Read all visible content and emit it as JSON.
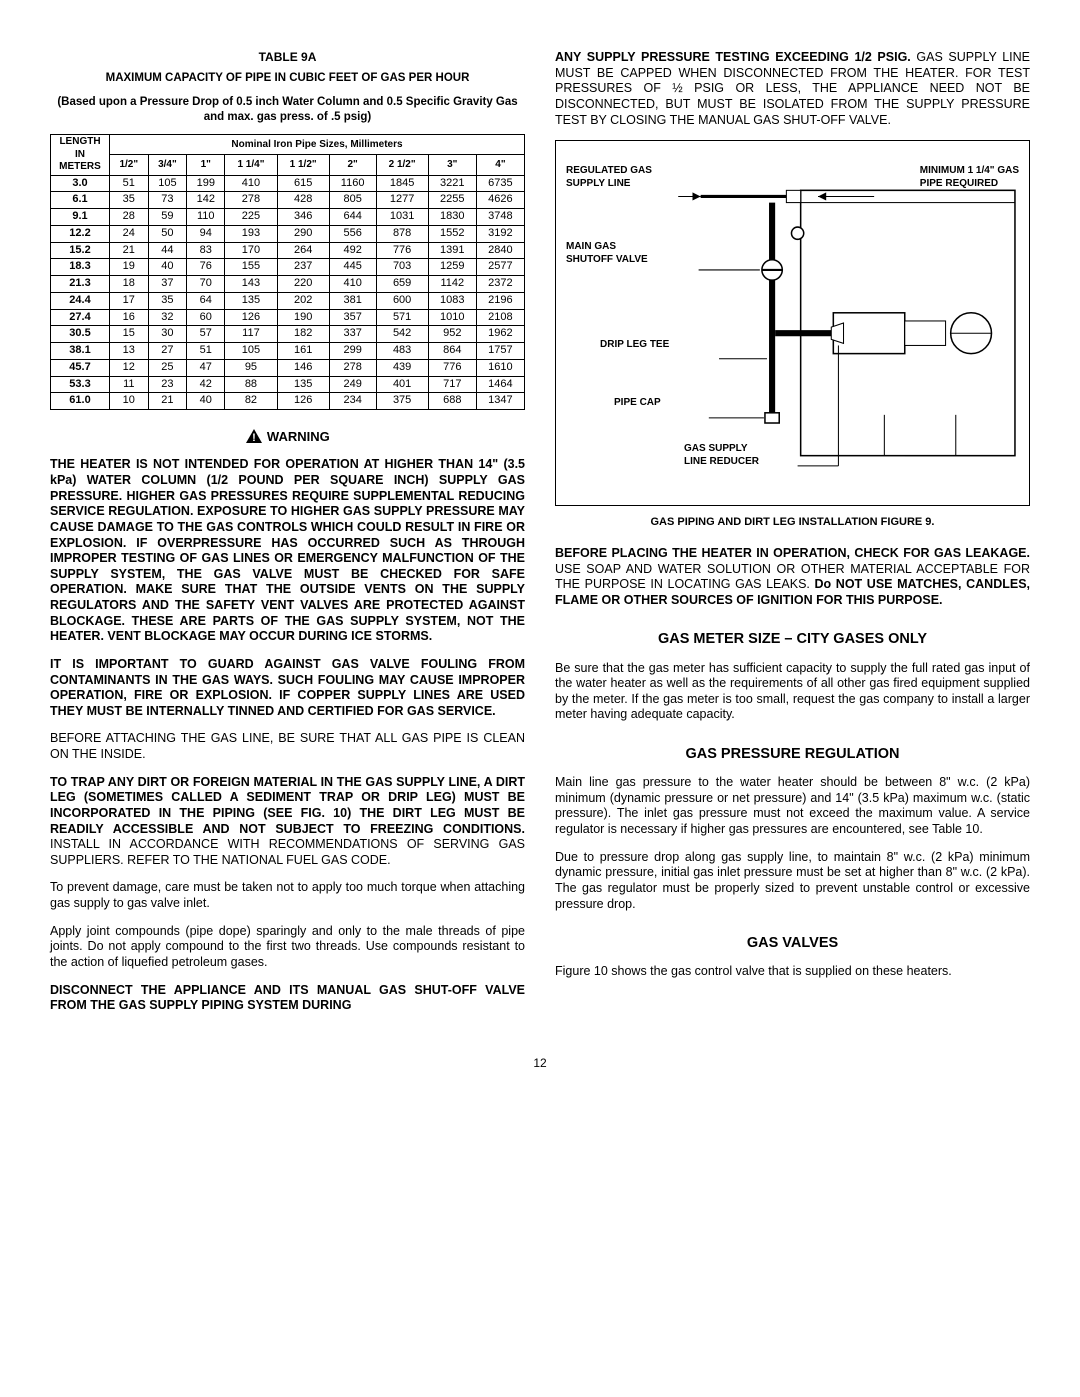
{
  "table": {
    "title": "TABLE 9A",
    "subtitle1": "MAXIMUM CAPACITY OF PIPE IN CUBIC FEET OF GAS PER HOUR",
    "subtitle2": "(Based upon a Pressure Drop of 0.5 inch Water Column and 0.5 Specific Gravity Gas and max. gas press. of .5 psig)",
    "corner1": "LENGTH",
    "corner2": "IN",
    "corner3": "METERS",
    "nominal_header": "Nominal Iron Pipe Sizes, Millimeters",
    "size_headers": [
      "1/2\"",
      "3/4\"",
      "1\"",
      "1 1/4\"",
      "1 1/2\"",
      "2\"",
      "2 1/2\"",
      "3\"",
      "4\""
    ],
    "rows": [
      {
        "m": "3.0",
        "v": [
          "51",
          "105",
          "199",
          "410",
          "615",
          "1160",
          "1845",
          "3221",
          "6735"
        ]
      },
      {
        "m": "6.1",
        "v": [
          "35",
          "73",
          "142",
          "278",
          "428",
          "805",
          "1277",
          "2255",
          "4626"
        ]
      },
      {
        "m": "9.1",
        "v": [
          "28",
          "59",
          "110",
          "225",
          "346",
          "644",
          "1031",
          "1830",
          "3748"
        ]
      },
      {
        "m": "12.2",
        "v": [
          "24",
          "50",
          "94",
          "193",
          "290",
          "556",
          "878",
          "1552",
          "3192"
        ]
      },
      {
        "m": "15.2",
        "v": [
          "21",
          "44",
          "83",
          "170",
          "264",
          "492",
          "776",
          "1391",
          "2840"
        ]
      },
      {
        "m": "18.3",
        "v": [
          "19",
          "40",
          "76",
          "155",
          "237",
          "445",
          "703",
          "1259",
          "2577"
        ]
      },
      {
        "m": "21.3",
        "v": [
          "18",
          "37",
          "70",
          "143",
          "220",
          "410",
          "659",
          "1142",
          "2372"
        ]
      },
      {
        "m": "24.4",
        "v": [
          "17",
          "35",
          "64",
          "135",
          "202",
          "381",
          "600",
          "1083",
          "2196"
        ]
      },
      {
        "m": "27.4",
        "v": [
          "16",
          "32",
          "60",
          "126",
          "190",
          "357",
          "571",
          "1010",
          "2108"
        ]
      },
      {
        "m": "30.5",
        "v": [
          "15",
          "30",
          "57",
          "117",
          "182",
          "337",
          "542",
          "952",
          "1962"
        ]
      },
      {
        "m": "38.1",
        "v": [
          "13",
          "27",
          "51",
          "105",
          "161",
          "299",
          "483",
          "864",
          "1757"
        ]
      },
      {
        "m": "45.7",
        "v": [
          "12",
          "25",
          "47",
          "95",
          "146",
          "278",
          "439",
          "776",
          "1610"
        ]
      },
      {
        "m": "53.3",
        "v": [
          "11",
          "23",
          "42",
          "88",
          "135",
          "249",
          "401",
          "717",
          "1464"
        ]
      },
      {
        "m": "61.0",
        "v": [
          "10",
          "21",
          "40",
          "82",
          "126",
          "234",
          "375",
          "688",
          "1347"
        ]
      }
    ]
  },
  "warning_label": "WARNING",
  "left_paras": {
    "p1": "THE HEATER IS NOT INTENDED FOR OPERATION AT HIGHER THAN 14\" (3.5 kPa) WATER COLUMN (1/2 POUND PER SQUARE INCH) SUPPLY GAS PRESSURE.  HIGHER GAS PRESSURES REQUIRE SUPPLEMENTAL REDUCING SERVICE REGULATION.  EXPOSURE TO HIGHER GAS SUPPLY PRESSURE MAY CAUSE DAMAGE TO THE GAS CONTROLS WHICH COULD RESULT IN FIRE OR EXPLOSION.  IF OVERPRESSURE HAS OCCURRED SUCH AS THROUGH IMPROPER TESTING OF GAS LINES OR EMERGENCY MALFUNCTION OF THE SUPPLY SYSTEM, THE GAS VALVE MUST BE CHECKED FOR SAFE OPERATION.  MAKE SURE THAT THE OUTSIDE VENTS ON THE SUPPLY REGULATORS AND THE SAFETY VENT VALVES ARE PROTECTED AGAINST BLOCKAGE.  THESE ARE PARTS OF THE GAS SUPPLY SYSTEM, NOT THE HEATER.  VENT BLOCKAGE MAY OCCUR DURING ICE STORMS.",
    "p2": "IT IS IMPORTANT TO GUARD AGAINST GAS VALVE FOULING FROM CONTAMINANTS IN THE GAS WAYS.  SUCH FOULING MAY CAUSE IMPROPER OPERATION, FIRE OR EXPLOSION.  IF COPPER SUPPLY LINES ARE USED THEY MUST BE INTERNALLY TINNED AND CERTIFIED FOR GAS SERVICE.",
    "p3": "BEFORE ATTACHING THE GAS LINE, BE SURE THAT ALL GAS PIPE IS CLEAN ON THE INSIDE.",
    "p4a": "TO TRAP ANY DIRT OR FOREIGN MATERIAL IN THE GAS SUPPLY LINE, A DIRT LEG (SOMETIMES CALLED A SEDIMENT TRAP OR DRIP LEG) MUST BE INCORPORATED IN THE PIPING (SEE FIG. 10) THE DIRT LEG MUST BE READILY ACCESSIBLE AND NOT SUBJECT TO FREEZING CONDITIONS.",
    "p4b": "  INSTALL IN ACCORDANCE WITH RECOMMENDATIONS OF SERVING GAS SUPPLIERS.  REFER TO THE NATIONAL FUEL GAS CODE.",
    "p5": "To prevent damage, care must be taken not to apply too much torque when attaching gas supply to gas valve inlet.",
    "p6": "Apply joint compounds (pipe dope) sparingly and only to the male threads of pipe joints.  Do not apply compound to the first two threads.  Use compounds resistant to the action of liquefied petroleum gases.",
    "p7": "DISCONNECT THE APPLIANCE AND ITS MANUAL GAS SHUT-OFF VALVE FROM THE GAS SUPPLY PIPING SYSTEM DURING"
  },
  "right_paras": {
    "p1a": "ANY SUPPLY PRESSURE TESTING EXCEEDING 1/2 PSIG.",
    "p1b": " GAS SUPPLY LINE MUST BE CAPPED WHEN DISCONNECTED FROM THE HEATER.  FOR TEST PRESSURES OF ½ PSIG OR LESS, THE APPLIANCE NEED NOT BE DISCONNECTED, BUT MUST BE ISOLATED FROM THE SUPPLY PRESSURE TEST BY CLOSING THE MANUAL GAS SHUT-OFF VALVE.",
    "fig_caption": "GAS PIPING AND DIRT LEG INSTALLATION FIGURE 9.",
    "p2a": "BEFORE PLACING THE HEATER IN OPERATION, CHECK FOR GAS LEAKAGE.",
    "p2b": " USE SOAP AND WATER SOLUTION OR OTHER MATERIAL ACCEPTABLE FOR THE PURPOSE IN LOCATING GAS LEAKS.  ",
    "p2c": "Do NOT USE MATCHES, CANDLES, FLAME OR OTHER SOURCES OF IGNITION FOR THIS PURPOSE.",
    "h1": "GAS METER SIZE – CITY GASES ONLY",
    "p3": "Be sure that the gas meter has sufficient capacity to supply the full rated gas input of the water heater as well as the requirements of all other gas fired equipment supplied by the meter.  If the gas meter is too small, request the gas company to install a larger meter having adequate capacity.",
    "h2": "GAS PRESSURE REGULATION",
    "p4": "Main line gas pressure to the water heater should be between 8\" w.c. (2 kPa) minimum (dynamic pressure or net pressure) and 14\" (3.5 kPa) maximum w.c. (static pressure). The inlet gas pressure must not exceed the maximum value.  A service regulator is necessary if higher gas pressures are encountered, see Table 10.",
    "p5": "Due to pressure drop along gas supply line, to maintain 8\" w.c. (2 kPa) minimum dynamic pressure, initial gas inlet pressure must be set at higher than 8\" w.c. (2 kPa). The gas regulator must be properly sized to prevent unstable control or excessive pressure drop.",
    "h3": "GAS VALVES",
    "p6": "Figure 10 shows the gas control valve that is supplied on these heaters."
  },
  "diagram": {
    "l1": "REGULATED GAS",
    "l2": "SUPPLY LINE",
    "l3": "MINIMUM 1 1/4\" GAS",
    "l4": "PIPE REQUIRED",
    "l5": "MAIN GAS",
    "l6": "SHUTOFF VALVE",
    "l7": "DRIP LEG TEE",
    "l8": "PIPE CAP",
    "l9": "GAS SUPPLY",
    "l10": "LINE REDUCER"
  },
  "page": "12"
}
